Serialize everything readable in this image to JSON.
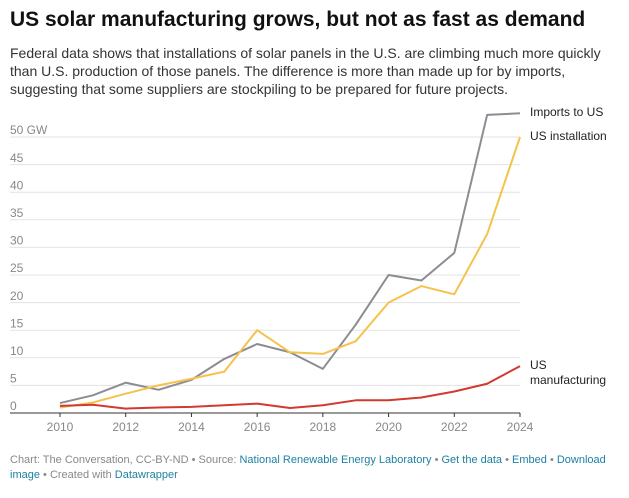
{
  "chart_data": {
    "type": "line",
    "title": "US solar manufacturing grows, but not as fast as demand",
    "subtitle": "Federal data shows that installations of solar panels in the U.S. are climbing much more quickly than U.S. production of those panels. The difference is more than made up for by imports, suggesting that some suppliers are stockpiling to be prepared for future projects.",
    "x": [
      2010,
      2011,
      2012,
      2013,
      2014,
      2015,
      2016,
      2017,
      2018,
      2019,
      2020,
      2021,
      2022,
      2023,
      2024
    ],
    "series": [
      {
        "name": "Imports to US",
        "color": "#8e8c93",
        "values": [
          1.8,
          3.2,
          5.5,
          4.2,
          6,
          9.8,
          12.5,
          11,
          8,
          16,
          25,
          24,
          29,
          54,
          54.3
        ]
      },
      {
        "name": "US installation",
        "color": "#f5c24c",
        "values": [
          1,
          1.9,
          3.5,
          5,
          6.2,
          7.5,
          15,
          11,
          10.7,
          13,
          20,
          23,
          21.5,
          32.4,
          50
        ]
      },
      {
        "name": "US manufacturing",
        "color": "#d13a2e",
        "values": [
          1.3,
          1.5,
          0.8,
          1,
          1.1,
          1.4,
          1.7,
          0.9,
          1.4,
          2.3,
          2.3,
          2.8,
          3.9,
          5.3,
          8.5
        ]
      }
    ],
    "xlim": [
      2010,
      2024
    ],
    "xticks": [
      2010,
      2012,
      2014,
      2016,
      2018,
      2020,
      2022,
      2024
    ],
    "ylim": [
      0,
      55
    ],
    "yticks": [
      0,
      5,
      10,
      15,
      20,
      25,
      30,
      35,
      40,
      45,
      {
        "value": 50,
        "label": "50 GW"
      }
    ],
    "grid": true,
    "footer": {
      "credit": "Chart: The Conversation, CC-BY-ND",
      "separator": "•",
      "source_label": "Source:",
      "source": "National Renewable Energy Laboratory",
      "links": [
        "Get the data",
        "Embed",
        "Download image"
      ],
      "created": "Created with",
      "tool": "Datawrapper"
    }
  }
}
